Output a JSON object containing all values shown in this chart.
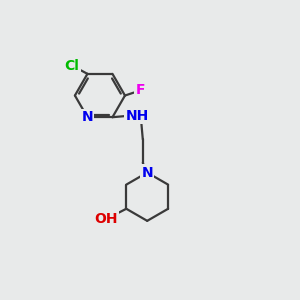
{
  "background_color": "#e8eaea",
  "bond_color": "#3a3a3a",
  "atom_colors": {
    "N": "#0000ee",
    "Cl": "#00bb00",
    "F": "#ee00ee",
    "O": "#dd0000",
    "NH": "#3a3a3a"
  },
  "bond_width": 1.6,
  "font_size": 10,
  "fig_width": 3.0,
  "fig_height": 3.0,
  "dpi": 100
}
